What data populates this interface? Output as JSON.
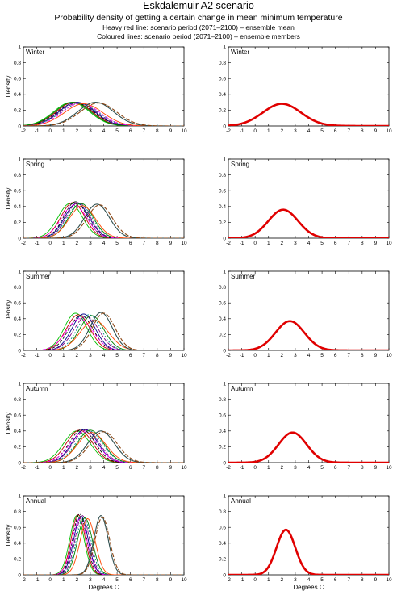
{
  "header": {
    "title": "Eskdalemuir A2 scenario",
    "subtitle": "Probability density of getting a certain change in mean minimum temperature",
    "legend_line1": "Heavy red line: scenario period (2071–2100) – ensemble mean",
    "legend_line2": "Coloured lines: scenario period (2071–2100) – ensemble members"
  },
  "colors": {
    "mean": "#e00000",
    "members": [
      "#00c000",
      "#c00000",
      "#000000",
      "#00008b",
      "#800080",
      "#008b8b",
      "#008000",
      "#ff00ff",
      "#ff4500",
      "#2f4f4f",
      "#8b4513"
    ]
  },
  "chart_data": {
    "type": "line",
    "xlabel": "Degrees C",
    "ylabel": "Density",
    "xlim": [
      -2,
      10
    ],
    "ylim": [
      0,
      1
    ],
    "xticks": [
      -2,
      -1,
      0,
      1,
      2,
      3,
      4,
      5,
      6,
      7,
      8,
      9,
      10
    ],
    "yticks": [
      0,
      0.2,
      0.4,
      0.6,
      0.8,
      1
    ],
    "panels": [
      {
        "season": "Winter",
        "mean": {
          "mu": 2.0,
          "peak": 0.28
        },
        "members": [
          {
            "mu": 1.6,
            "peak": 0.3
          },
          {
            "mu": 1.8,
            "peak": 0.3
          },
          {
            "mu": 1.9,
            "peak": 0.29
          },
          {
            "mu": 2.0,
            "peak": 0.3
          },
          {
            "mu": 2.1,
            "peak": 0.29
          },
          {
            "mu": 2.2,
            "peak": 0.28
          },
          {
            "mu": 1.7,
            "peak": 0.3
          },
          {
            "mu": 2.3,
            "peak": 0.29
          },
          {
            "mu": 2.5,
            "peak": 0.28
          },
          {
            "mu": 3.4,
            "peak": 0.3
          },
          {
            "mu": 3.6,
            "peak": 0.29
          }
        ]
      },
      {
        "season": "Spring",
        "mean": {
          "mu": 2.1,
          "peak": 0.36
        },
        "members": [
          {
            "mu": 1.5,
            "peak": 0.44
          },
          {
            "mu": 1.7,
            "peak": 0.45
          },
          {
            "mu": 1.9,
            "peak": 0.46
          },
          {
            "mu": 2.0,
            "peak": 0.44
          },
          {
            "mu": 2.1,
            "peak": 0.45
          },
          {
            "mu": 2.2,
            "peak": 0.43
          },
          {
            "mu": 2.3,
            "peak": 0.44
          },
          {
            "mu": 1.8,
            "peak": 0.42
          },
          {
            "mu": 2.4,
            "peak": 0.41
          },
          {
            "mu": 3.5,
            "peak": 0.43
          },
          {
            "mu": 3.7,
            "peak": 0.42
          }
        ]
      },
      {
        "season": "Summer",
        "mean": {
          "mu": 2.6,
          "peak": 0.37
        },
        "members": [
          {
            "mu": 1.9,
            "peak": 0.47
          },
          {
            "mu": 2.1,
            "peak": 0.45
          },
          {
            "mu": 2.3,
            "peak": 0.44
          },
          {
            "mu": 2.5,
            "peak": 0.46
          },
          {
            "mu": 2.7,
            "peak": 0.43
          },
          {
            "mu": 2.9,
            "peak": 0.45
          },
          {
            "mu": 3.1,
            "peak": 0.44
          },
          {
            "mu": 2.2,
            "peak": 0.4
          },
          {
            "mu": 3.3,
            "peak": 0.38
          },
          {
            "mu": 3.8,
            "peak": 0.48
          },
          {
            "mu": 4.0,
            "peak": 0.47
          }
        ]
      },
      {
        "season": "Autumn",
        "mean": {
          "mu": 2.8,
          "peak": 0.38
        },
        "members": [
          {
            "mu": 2.0,
            "peak": 0.4
          },
          {
            "mu": 2.2,
            "peak": 0.41
          },
          {
            "mu": 2.4,
            "peak": 0.42
          },
          {
            "mu": 2.6,
            "peak": 0.42
          },
          {
            "mu": 2.7,
            "peak": 0.41
          },
          {
            "mu": 2.9,
            "peak": 0.4
          },
          {
            "mu": 3.0,
            "peak": 0.41
          },
          {
            "mu": 2.5,
            "peak": 0.39
          },
          {
            "mu": 3.1,
            "peak": 0.38
          },
          {
            "mu": 3.8,
            "peak": 0.4
          },
          {
            "mu": 4.0,
            "peak": 0.39
          }
        ]
      },
      {
        "season": "Annual",
        "mean": {
          "mu": 2.3,
          "peak": 0.57
        },
        "members": [
          {
            "mu": 2.0,
            "peak": 0.75
          },
          {
            "mu": 2.1,
            "peak": 0.76
          },
          {
            "mu": 2.2,
            "peak": 0.77
          },
          {
            "mu": 2.3,
            "peak": 0.74
          },
          {
            "mu": 2.4,
            "peak": 0.75
          },
          {
            "mu": 2.5,
            "peak": 0.73
          },
          {
            "mu": 2.6,
            "peak": 0.72
          },
          {
            "mu": 2.2,
            "peak": 0.7
          },
          {
            "mu": 2.8,
            "peak": 0.71
          },
          {
            "mu": 3.8,
            "peak": 0.75
          },
          {
            "mu": 3.9,
            "peak": 0.73
          }
        ]
      }
    ]
  }
}
